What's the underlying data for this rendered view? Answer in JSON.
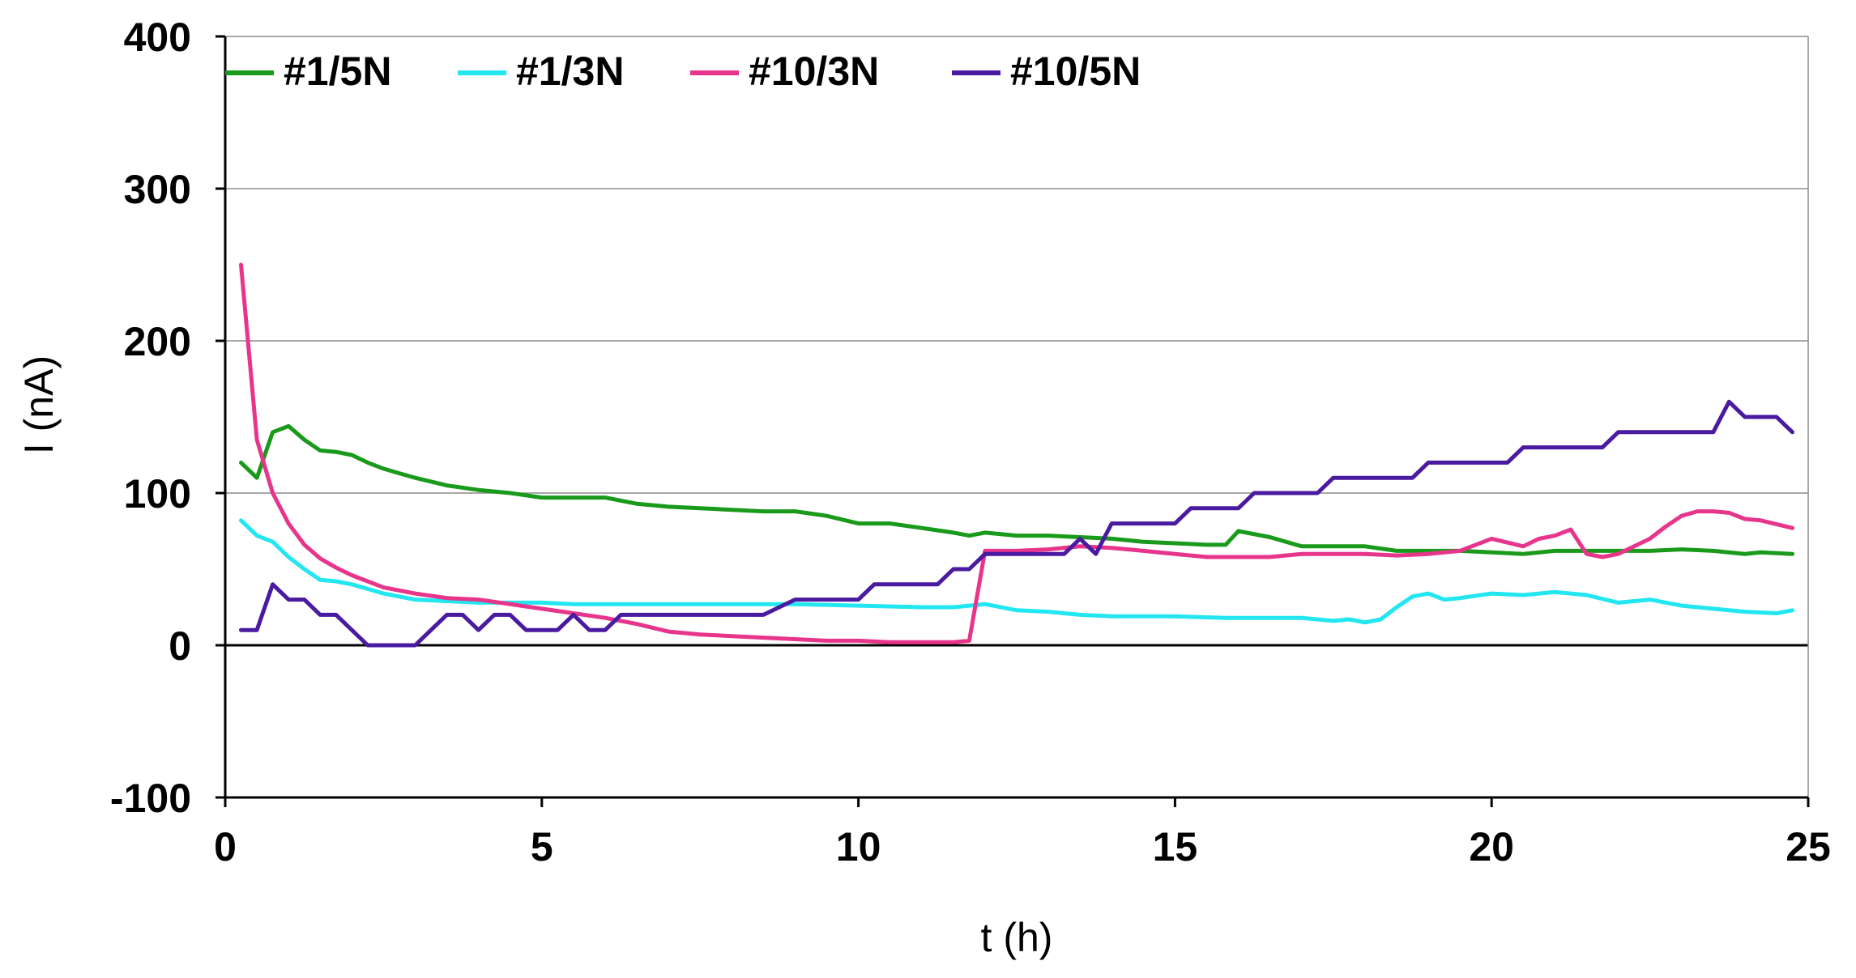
{
  "chart_data": {
    "type": "line",
    "title": "",
    "xlabel": "t (h)",
    "ylabel": "I (nA)",
    "xlim": [
      0,
      25
    ],
    "ylim": [
      -100,
      400
    ],
    "xticks": [
      0,
      5,
      10,
      15,
      20,
      25
    ],
    "yticks": [
      400,
      300,
      200,
      100,
      0,
      -100
    ],
    "grid": "horizontal",
    "legend": "top-left",
    "series": [
      {
        "name": "#1/5N",
        "color": "#1a9a1a",
        "x": [
          0.25,
          0.5,
          0.75,
          1.0,
          1.25,
          1.5,
          1.75,
          2.0,
          2.25,
          2.5,
          2.75,
          3.0,
          3.5,
          4.0,
          4.5,
          5.0,
          5.5,
          6.0,
          6.5,
          7.0,
          7.5,
          8.0,
          8.5,
          9.0,
          9.5,
          10.0,
          10.5,
          11.0,
          11.5,
          11.75,
          12.0,
          12.5,
          13.0,
          13.5,
          14.0,
          14.5,
          15.0,
          15.5,
          15.8,
          16.0,
          16.5,
          17.0,
          17.5,
          18.0,
          18.5,
          19.0,
          19.5,
          20.0,
          20.5,
          21.0,
          21.5,
          22.0,
          22.5,
          23.0,
          23.5,
          24.0,
          24.25,
          24.75
        ],
        "y": [
          120,
          110,
          140,
          144,
          135,
          128,
          127,
          125,
          120,
          116,
          113,
          110,
          105,
          102,
          100,
          97,
          97,
          97,
          93,
          91,
          90,
          89,
          88,
          88,
          85,
          80,
          80,
          77,
          74,
          72,
          74,
          72,
          72,
          71,
          70,
          68,
          67,
          66,
          66,
          75,
          71,
          65,
          65,
          65,
          62,
          62,
          62,
          61,
          60,
          62,
          62,
          62,
          62,
          63,
          62,
          60,
          61,
          60
        ]
      },
      {
        "name": "#1/3N",
        "color": "#22e6f0",
        "x": [
          0.25,
          0.5,
          0.75,
          1.0,
          1.25,
          1.5,
          1.75,
          2.0,
          2.25,
          2.5,
          3.0,
          3.5,
          4.0,
          4.5,
          5.0,
          5.5,
          6.0,
          7.0,
          8.0,
          9.0,
          10.0,
          11.0,
          11.5,
          12.0,
          12.5,
          13.0,
          13.5,
          14.0,
          15.0,
          15.8,
          16.0,
          17.0,
          17.5,
          17.75,
          18.0,
          18.25,
          18.5,
          18.75,
          19.0,
          19.25,
          19.5,
          20.0,
          20.5,
          21.0,
          21.5,
          22.0,
          22.5,
          23.0,
          23.5,
          24.0,
          24.5,
          24.75
        ],
        "y": [
          82,
          72,
          68,
          58,
          50,
          43,
          42,
          40,
          37,
          34,
          30,
          29,
          28,
          28,
          28,
          27,
          27,
          27,
          27,
          27,
          26,
          25,
          25,
          27,
          23,
          22,
          20,
          19,
          19,
          18,
          18,
          18,
          16,
          17,
          15,
          17,
          25,
          32,
          34,
          30,
          31,
          34,
          33,
          35,
          33,
          28,
          30,
          26,
          24,
          22,
          21,
          23
        ]
      },
      {
        "name": "#10/3N",
        "color": "#e8358c",
        "x": [
          0.25,
          0.5,
          0.75,
          1.0,
          1.25,
          1.5,
          1.75,
          2.0,
          2.5,
          3.0,
          3.5,
          4.0,
          4.5,
          5.0,
          5.5,
          6.0,
          6.5,
          7.0,
          7.5,
          8.0,
          8.5,
          9.0,
          9.5,
          10.0,
          10.5,
          11.0,
          11.5,
          11.75,
          12.0,
          12.5,
          13.0,
          13.5,
          14.0,
          14.5,
          15.0,
          15.5,
          16.0,
          16.5,
          17.0,
          17.5,
          18.0,
          18.5,
          19.0,
          19.5,
          20.0,
          20.5,
          20.75,
          21.0,
          21.25,
          21.5,
          21.75,
          22.0,
          22.5,
          22.75,
          23.0,
          23.25,
          23.5,
          23.75,
          24.0,
          24.25,
          24.75
        ],
        "y": [
          250,
          135,
          100,
          80,
          66,
          57,
          51,
          46,
          38,
          34,
          31,
          30,
          27,
          24,
          21,
          18,
          14,
          9,
          7,
          6,
          5,
          4,
          3,
          3,
          2,
          2,
          2,
          3,
          62,
          62,
          63,
          65,
          64,
          62,
          60,
          58,
          58,
          58,
          60,
          60,
          60,
          59,
          60,
          62,
          70,
          65,
          70,
          72,
          76,
          60,
          58,
          60,
          70,
          78,
          85,
          88,
          88,
          87,
          83,
          82,
          77
        ]
      },
      {
        "name": "#10/5N",
        "color": "#4a1aa0",
        "x": [
          0.25,
          0.5,
          0.75,
          1.0,
          1.25,
          1.5,
          1.75,
          2.0,
          2.25,
          2.5,
          3.0,
          3.25,
          3.5,
          3.75,
          4.0,
          4.25,
          4.5,
          4.75,
          5.0,
          5.25,
          5.5,
          5.75,
          6.0,
          6.25,
          6.5,
          6.75,
          7.0,
          7.5,
          8.0,
          8.5,
          9.0,
          9.25,
          9.5,
          10.0,
          10.25,
          10.5,
          11.0,
          11.25,
          11.5,
          11.75,
          12.0,
          12.5,
          13.0,
          13.25,
          13.5,
          13.75,
          14.0,
          14.25,
          14.5,
          15.0,
          15.25,
          15.5,
          15.75,
          16.0,
          16.25,
          16.5,
          17.0,
          17.25,
          17.5,
          18.0,
          18.5,
          18.75,
          19.0,
          19.5,
          20.0,
          20.25,
          20.5,
          21.0,
          21.5,
          21.75,
          22.0,
          22.5,
          23.0,
          23.25,
          23.5,
          23.75,
          24.0,
          24.5,
          24.75
        ],
        "y": [
          10,
          10,
          40,
          30,
          30,
          20,
          20,
          10,
          0,
          0,
          0,
          10,
          20,
          20,
          10,
          20,
          20,
          10,
          10,
          10,
          20,
          10,
          10,
          20,
          20,
          20,
          20,
          20,
          20,
          20,
          30,
          30,
          30,
          30,
          40,
          40,
          40,
          40,
          50,
          50,
          60,
          60,
          60,
          60,
          70,
          60,
          80,
          80,
          80,
          80,
          90,
          90,
          90,
          90,
          100,
          100,
          100,
          100,
          110,
          110,
          110,
          110,
          120,
          120,
          120,
          120,
          130,
          130,
          130,
          130,
          140,
          140,
          140,
          140,
          140,
          160,
          150,
          150,
          140
        ]
      }
    ]
  }
}
